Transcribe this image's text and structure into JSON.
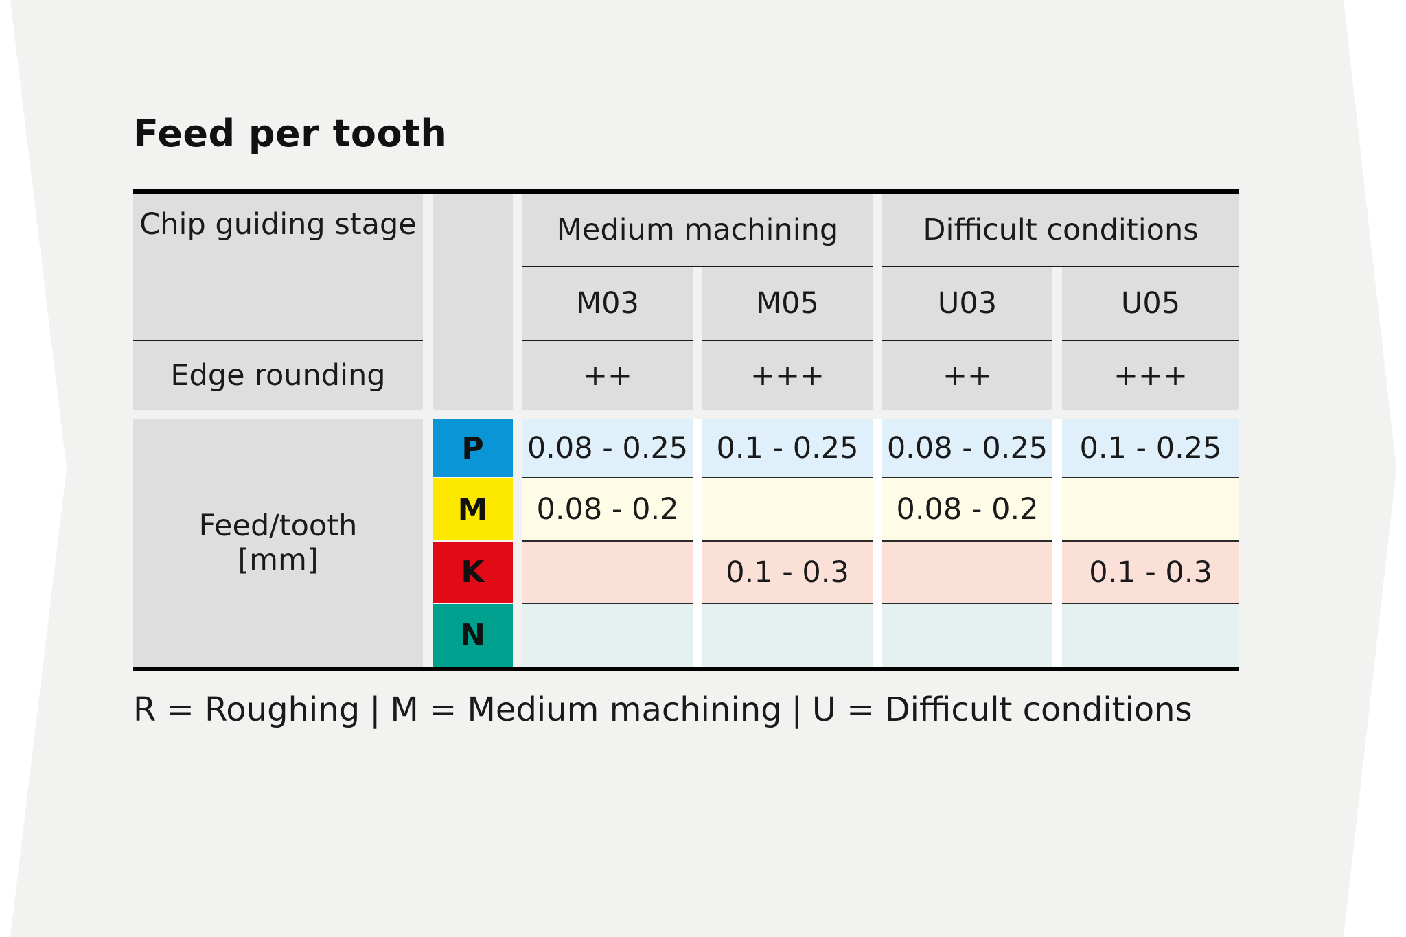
{
  "title": "Feed per tooth",
  "colors": {
    "background_shape": "#f2f2f0",
    "header_gray": "#dedede",
    "P": "#0a96d6",
    "M": "#fde800",
    "K": "#e20a17",
    "N": "#00a08f",
    "P_row": "#dff0fb",
    "M_row": "#fefbe6",
    "K_row": "#fbe0d7",
    "N_row": "#e5f1f0"
  },
  "header": {
    "chip_guiding_stage": "Chip guiding stage",
    "edge_rounding": "Edge rounding",
    "groups": [
      "Medium machining",
      "Difficult conditions"
    ],
    "stages": [
      "M03",
      "M05",
      "U03",
      "U05"
    ],
    "edge_values": [
      "++",
      "+++",
      "++",
      "+++"
    ]
  },
  "body": {
    "row_label_line1": "Feed/tooth",
    "row_label_line2": "[mm]",
    "rows": [
      {
        "material": "P",
        "values": [
          "0.08 - 0.25",
          "0.1 - 0.25",
          "0.08 - 0.25",
          "0.1 - 0.25"
        ]
      },
      {
        "material": "M",
        "values": [
          "0.08 - 0.2",
          "",
          "0.08 - 0.2",
          ""
        ]
      },
      {
        "material": "K",
        "values": [
          "",
          "0.1 - 0.3",
          "",
          "0.1 - 0.3"
        ]
      },
      {
        "material": "N",
        "values": [
          "",
          "",
          "",
          ""
        ]
      }
    ]
  },
  "legend": {
    "r": "R = Roughing",
    "m": "M = Medium machining",
    "u": "U = Difficult conditions",
    "separator": "|"
  }
}
